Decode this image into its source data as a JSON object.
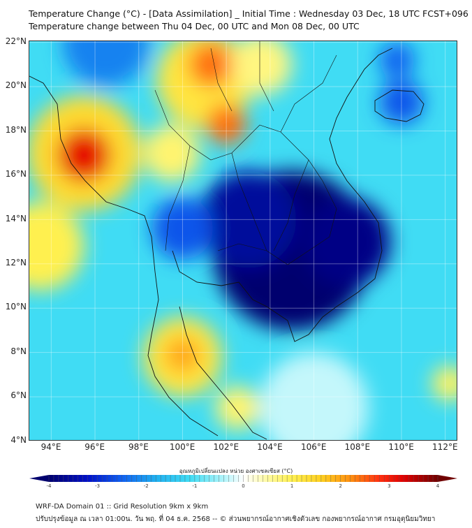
{
  "title_line1": "Temperature Change (°C) - [Data Assimilation] _ Initial Time : Wednesday 03 Dec, 18 UTC FCST+096",
  "title_line2": "Temperature change between Thu 04 Dec, 00 UTC and Mon 08 Dec, 00 UTC",
  "lat_labels": [
    "22°N",
    "20°N",
    "18°N",
    "16°N",
    "14°N",
    "12°N",
    "10°N",
    "8°N",
    "6°N",
    "4°N"
  ],
  "lon_labels": [
    "94°E",
    "96°E",
    "98°E",
    "100°E",
    "102°E",
    "104°E",
    "106°E",
    "108°E",
    "110°E",
    "112°E"
  ],
  "colorbar": {
    "label": "อุณหภูมิเปลี่ยนแปลง หน่วย องศาเซลเซียส (°C)",
    "ticks": [
      "-4",
      "-3",
      "-2",
      "-1",
      "0",
      "1",
      "2",
      "3",
      "4"
    ],
    "range": [
      -4,
      4
    ]
  },
  "footer_line1": "WRF-DA Domain 01 :: Grid Resolution 9km x 9km",
  "footer_line2": "ปรับปรุงข้อมูล ณ เวลา 01:00น. วัน พฤ. ที่ 04 ธ.ค. 2568 -- © ส่วนพยากรณ์อากาศเชิงตัวเลข กองพยากรณ์อากาศ กรมอุตุนิยมวิทยา",
  "chart_data": {
    "type": "heatmap",
    "variable": "Temperature change (°C)",
    "lon_range": [
      93,
      112.6
    ],
    "lat_range": [
      4,
      22
    ],
    "background_value": -1.1,
    "anomalies": [
      {
        "lon": 105.0,
        "lat": 12.6,
        "r": 3.6,
        "value": -4.0
      },
      {
        "lon": 103.0,
        "lat": 14.0,
        "r": 2.2,
        "value": -3.6
      },
      {
        "lon": 107.5,
        "lat": 13.0,
        "r": 2.0,
        "value": -3.8
      },
      {
        "lon": 100.0,
        "lat": 13.6,
        "r": 1.4,
        "value": -2.6
      },
      {
        "lon": 96.5,
        "lat": 22.0,
        "r": 2.0,
        "value": -2.2
      },
      {
        "lon": 110.0,
        "lat": 19.3,
        "r": 1.0,
        "value": -2.6
      },
      {
        "lon": 109.8,
        "lat": 21.2,
        "r": 0.8,
        "value": -2.5
      },
      {
        "lon": 95.5,
        "lat": 17.0,
        "r": 2.6,
        "value": 1.4
      },
      {
        "lon": 95.5,
        "lat": 16.9,
        "r": 1.2,
        "value": 3.2
      },
      {
        "lon": 93.5,
        "lat": 12.8,
        "r": 2.0,
        "value": 1.0
      },
      {
        "lon": 101.0,
        "lat": 20.3,
        "r": 2.2,
        "value": 1.2
      },
      {
        "lon": 101.3,
        "lat": 21.0,
        "r": 1.0,
        "value": 2.4
      },
      {
        "lon": 102.0,
        "lat": 18.3,
        "r": 0.9,
        "value": 2.4
      },
      {
        "lon": 99.5,
        "lat": 17.0,
        "r": 1.3,
        "value": 0.8
      },
      {
        "lon": 103.6,
        "lat": 21.0,
        "r": 1.4,
        "value": 0.7
      },
      {
        "lon": 100.0,
        "lat": 7.8,
        "r": 1.8,
        "value": 1.2
      },
      {
        "lon": 100.0,
        "lat": 7.9,
        "r": 0.8,
        "value": 2.0
      },
      {
        "lon": 102.5,
        "lat": 5.5,
        "r": 1.0,
        "value": 0.8
      },
      {
        "lon": 112.2,
        "lat": 6.6,
        "r": 0.8,
        "value": 0.9
      },
      {
        "lon": 106.0,
        "lat": 5.5,
        "r": 2.5,
        "value": -0.3
      }
    ]
  }
}
